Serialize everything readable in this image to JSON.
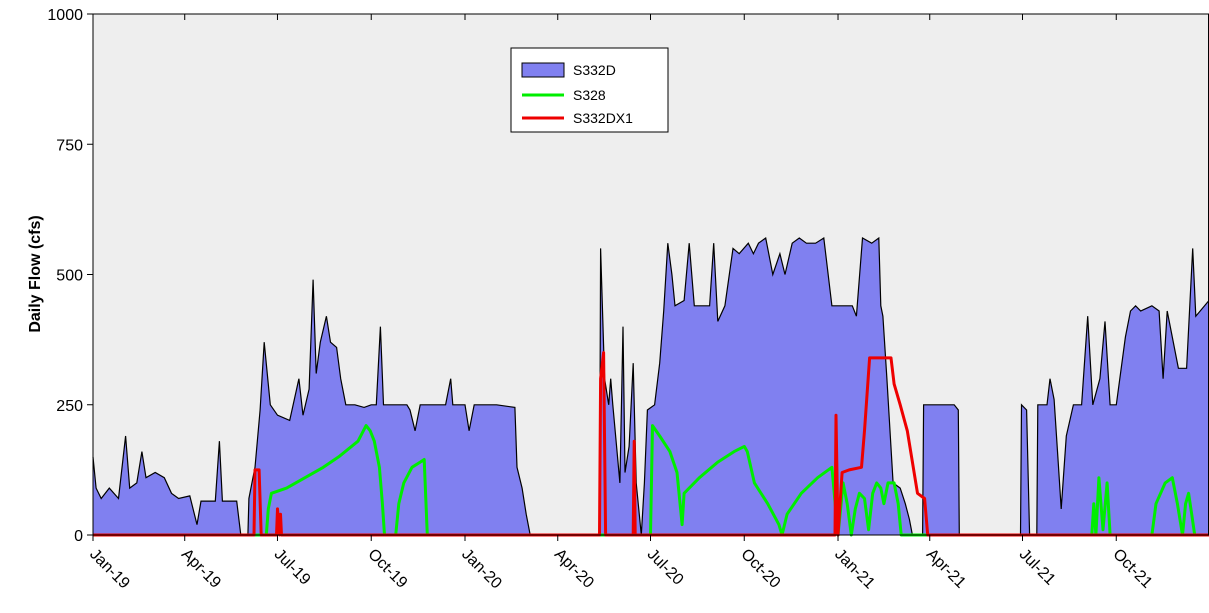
{
  "chart_data": {
    "type": "area",
    "title": "",
    "xlabel": "",
    "ylabel": "Daily Flow (cfs)",
    "ylim": [
      0,
      1000
    ],
    "yticks": [
      0,
      250,
      500,
      750,
      1000
    ],
    "xlim": [
      "2019-01-01",
      "2021-12-31"
    ],
    "xticks": [
      {
        "date": "2019-01-01",
        "label": "Jan-19"
      },
      {
        "date": "2019-04-01",
        "label": "Apr-19"
      },
      {
        "date": "2019-07-01",
        "label": "Jul-19"
      },
      {
        "date": "2019-10-01",
        "label": "Oct-19"
      },
      {
        "date": "2020-01-01",
        "label": "Jan-20"
      },
      {
        "date": "2020-04-01",
        "label": "Apr-20"
      },
      {
        "date": "2020-07-01",
        "label": "Jul-20"
      },
      {
        "date": "2020-10-01",
        "label": "Oct-20"
      },
      {
        "date": "2021-01-01",
        "label": "Jan-21"
      },
      {
        "date": "2021-04-01",
        "label": "Apr-21"
      },
      {
        "date": "2021-07-01",
        "label": "Jul-21"
      },
      {
        "date": "2021-10-01",
        "label": "Oct-21"
      }
    ],
    "grid": false,
    "legend_position": "top-center",
    "background": "#eeeeee",
    "series": [
      {
        "name": "S332D",
        "kind": "area",
        "fill": "#8080f0",
        "stroke": "#000000",
        "points": [
          [
            "2019-01-01",
            150
          ],
          [
            "2019-01-04",
            90
          ],
          [
            "2019-01-09",
            70
          ],
          [
            "2019-01-17",
            90
          ],
          [
            "2019-01-26",
            70
          ],
          [
            "2019-02-02",
            190
          ],
          [
            "2019-02-06",
            90
          ],
          [
            "2019-02-13",
            100
          ],
          [
            "2019-02-18",
            160
          ],
          [
            "2019-02-22",
            110
          ],
          [
            "2019-03-03",
            120
          ],
          [
            "2019-03-12",
            110
          ],
          [
            "2019-03-19",
            80
          ],
          [
            "2019-03-26",
            70
          ],
          [
            "2019-04-06",
            75
          ],
          [
            "2019-04-13",
            20
          ],
          [
            "2019-04-17",
            65
          ],
          [
            "2019-05-01",
            65
          ],
          [
            "2019-05-05",
            180
          ],
          [
            "2019-05-08",
            65
          ],
          [
            "2019-05-22",
            65
          ],
          [
            "2019-05-26",
            0
          ],
          [
            "2019-06-02",
            0
          ],
          [
            "2019-06-03",
            70
          ],
          [
            "2019-06-09",
            130
          ],
          [
            "2019-06-14",
            240
          ],
          [
            "2019-06-18",
            370
          ],
          [
            "2019-06-24",
            250
          ],
          [
            "2019-07-01",
            230
          ],
          [
            "2019-07-13",
            220
          ],
          [
            "2019-07-22",
            300
          ],
          [
            "2019-07-26",
            230
          ],
          [
            "2019-08-01",
            280
          ],
          [
            "2019-08-05",
            490
          ],
          [
            "2019-08-08",
            310
          ],
          [
            "2019-08-12",
            370
          ],
          [
            "2019-08-18",
            420
          ],
          [
            "2019-08-22",
            370
          ],
          [
            "2019-08-28",
            360
          ],
          [
            "2019-09-01",
            300
          ],
          [
            "2019-09-06",
            250
          ],
          [
            "2019-09-15",
            250
          ],
          [
            "2019-09-24",
            245
          ],
          [
            "2019-10-01",
            250
          ],
          [
            "2019-10-06",
            250
          ],
          [
            "2019-10-10",
            400
          ],
          [
            "2019-10-13",
            250
          ],
          [
            "2019-10-30",
            250
          ],
          [
            "2019-11-05",
            250
          ],
          [
            "2019-11-08",
            240
          ],
          [
            "2019-11-13",
            200
          ],
          [
            "2019-11-18",
            250
          ],
          [
            "2019-12-01",
            250
          ],
          [
            "2019-12-13",
            250
          ],
          [
            "2019-12-18",
            300
          ],
          [
            "2019-12-20",
            250
          ],
          [
            "2020-01-01",
            250
          ],
          [
            "2020-01-05",
            200
          ],
          [
            "2020-01-10",
            250
          ],
          [
            "2020-02-01",
            250
          ],
          [
            "2020-02-19",
            245
          ],
          [
            "2020-02-21",
            130
          ],
          [
            "2020-02-26",
            90
          ],
          [
            "2020-03-01",
            40
          ],
          [
            "2020-03-05",
            0
          ],
          [
            "2020-05-12",
            0
          ],
          [
            "2020-05-13",
            550
          ],
          [
            "2020-05-17",
            300
          ],
          [
            "2020-05-21",
            250
          ],
          [
            "2020-05-23",
            300
          ],
          [
            "2020-05-25",
            250
          ],
          [
            "2020-06-01",
            100
          ],
          [
            "2020-06-04",
            400
          ],
          [
            "2020-06-06",
            120
          ],
          [
            "2020-06-10",
            170
          ],
          [
            "2020-06-14",
            330
          ],
          [
            "2020-06-17",
            100
          ],
          [
            "2020-06-22",
            0
          ],
          [
            "2020-06-25",
            100
          ],
          [
            "2020-06-28",
            240
          ],
          [
            "2020-07-05",
            250
          ],
          [
            "2020-07-10",
            330
          ],
          [
            "2020-07-14",
            430
          ],
          [
            "2020-07-18",
            560
          ],
          [
            "2020-07-22",
            500
          ],
          [
            "2020-07-25",
            440
          ],
          [
            "2020-08-03",
            450
          ],
          [
            "2020-08-08",
            560
          ],
          [
            "2020-08-13",
            440
          ],
          [
            "2020-08-28",
            440
          ],
          [
            "2020-09-01",
            560
          ],
          [
            "2020-09-05",
            410
          ],
          [
            "2020-09-12",
            440
          ],
          [
            "2020-09-20",
            550
          ],
          [
            "2020-09-26",
            540
          ],
          [
            "2020-10-05",
            560
          ],
          [
            "2020-10-10",
            540
          ],
          [
            "2020-10-15",
            560
          ],
          [
            "2020-10-22",
            570
          ],
          [
            "2020-10-29",
            500
          ],
          [
            "2020-11-05",
            540
          ],
          [
            "2020-11-10",
            500
          ],
          [
            "2020-11-17",
            560
          ],
          [
            "2020-11-24",
            570
          ],
          [
            "2020-12-01",
            560
          ],
          [
            "2020-12-10",
            560
          ],
          [
            "2020-12-18",
            570
          ],
          [
            "2020-12-26",
            440
          ],
          [
            "2021-01-05",
            440
          ],
          [
            "2021-01-15",
            440
          ],
          [
            "2021-01-19",
            420
          ],
          [
            "2021-01-25",
            570
          ],
          [
            "2021-02-03",
            560
          ],
          [
            "2021-02-10",
            570
          ],
          [
            "2021-02-12",
            440
          ],
          [
            "2021-02-14",
            420
          ],
          [
            "2021-02-18",
            300
          ],
          [
            "2021-02-24",
            100
          ],
          [
            "2021-03-03",
            90
          ],
          [
            "2021-03-08",
            60
          ],
          [
            "2021-03-12",
            30
          ],
          [
            "2021-03-15",
            0
          ],
          [
            "2021-03-25",
            0
          ],
          [
            "2021-03-26",
            250
          ],
          [
            "2021-04-10",
            250
          ],
          [
            "2021-04-25",
            250
          ],
          [
            "2021-04-29",
            240
          ],
          [
            "2021-04-30",
            0
          ],
          [
            "2021-06-29",
            0
          ],
          [
            "2021-06-30",
            250
          ],
          [
            "2021-07-05",
            240
          ],
          [
            "2021-07-08",
            0
          ],
          [
            "2021-07-15",
            0
          ],
          [
            "2021-07-16",
            250
          ],
          [
            "2021-07-25",
            250
          ],
          [
            "2021-07-28",
            300
          ],
          [
            "2021-08-01",
            260
          ],
          [
            "2021-08-05",
            140
          ],
          [
            "2021-08-08",
            50
          ],
          [
            "2021-08-13",
            190
          ],
          [
            "2021-08-20",
            250
          ],
          [
            "2021-08-28",
            250
          ],
          [
            "2021-09-03",
            420
          ],
          [
            "2021-09-08",
            250
          ],
          [
            "2021-09-15",
            300
          ],
          [
            "2021-09-20",
            410
          ],
          [
            "2021-09-25",
            250
          ],
          [
            "2021-10-01",
            250
          ],
          [
            "2021-10-10",
            380
          ],
          [
            "2021-10-15",
            430
          ],
          [
            "2021-10-20",
            440
          ],
          [
            "2021-10-25",
            430
          ],
          [
            "2021-11-05",
            440
          ],
          [
            "2021-11-12",
            430
          ],
          [
            "2021-11-16",
            300
          ],
          [
            "2021-11-20",
            430
          ],
          [
            "2021-12-01",
            320
          ],
          [
            "2021-12-09",
            320
          ],
          [
            "2021-12-15",
            550
          ],
          [
            "2021-12-18",
            420
          ],
          [
            "2021-12-31",
            450
          ]
        ]
      },
      {
        "name": "S328",
        "kind": "line",
        "color": "#00ee00",
        "points": [
          [
            "2019-01-01",
            0
          ],
          [
            "2019-06-20",
            0
          ],
          [
            "2019-06-22",
            50
          ],
          [
            "2019-06-25",
            80
          ],
          [
            "2019-07-10",
            90
          ],
          [
            "2019-07-28",
            110
          ],
          [
            "2019-08-15",
            130
          ],
          [
            "2019-08-30",
            150
          ],
          [
            "2019-09-18",
            180
          ],
          [
            "2019-09-26",
            210
          ],
          [
            "2019-09-30",
            200
          ],
          [
            "2019-10-04",
            180
          ],
          [
            "2019-10-09",
            130
          ],
          [
            "2019-10-12",
            60
          ],
          [
            "2019-10-14",
            0
          ],
          [
            "2019-10-25",
            0
          ],
          [
            "2019-10-28",
            60
          ],
          [
            "2019-11-02",
            100
          ],
          [
            "2019-11-10",
            130
          ],
          [
            "2019-11-18",
            140
          ],
          [
            "2019-11-22",
            145
          ],
          [
            "2019-11-25",
            0
          ],
          [
            "2020-07-01",
            0
          ],
          [
            "2020-07-03",
            210
          ],
          [
            "2020-07-10",
            190
          ],
          [
            "2020-07-20",
            160
          ],
          [
            "2020-07-27",
            120
          ],
          [
            "2020-08-01",
            20
          ],
          [
            "2020-08-03",
            80
          ],
          [
            "2020-08-18",
            110
          ],
          [
            "2020-09-05",
            140
          ],
          [
            "2020-09-21",
            160
          ],
          [
            "2020-10-01",
            170
          ],
          [
            "2020-10-04",
            160
          ],
          [
            "2020-10-11",
            100
          ],
          [
            "2020-10-24",
            60
          ],
          [
            "2020-11-04",
            20
          ],
          [
            "2020-11-07",
            0
          ],
          [
            "2020-11-12",
            40
          ],
          [
            "2020-11-26",
            80
          ],
          [
            "2020-12-12",
            110
          ],
          [
            "2020-12-26",
            130
          ],
          [
            "2021-01-01",
            0
          ],
          [
            "2021-01-03",
            40
          ],
          [
            "2021-01-06",
            100
          ],
          [
            "2021-01-10",
            60
          ],
          [
            "2021-01-14",
            0
          ],
          [
            "2021-01-18",
            50
          ],
          [
            "2021-01-22",
            80
          ],
          [
            "2021-01-27",
            70
          ],
          [
            "2021-01-31",
            10
          ],
          [
            "2021-02-04",
            80
          ],
          [
            "2021-02-08",
            100
          ],
          [
            "2021-02-12",
            90
          ],
          [
            "2021-02-15",
            60
          ],
          [
            "2021-02-19",
            100
          ],
          [
            "2021-02-25",
            100
          ],
          [
            "2021-03-01",
            60
          ],
          [
            "2021-03-04",
            0
          ],
          [
            "2021-09-07",
            0
          ],
          [
            "2021-09-09",
            60
          ],
          [
            "2021-09-11",
            0
          ],
          [
            "2021-09-14",
            110
          ],
          [
            "2021-09-18",
            10
          ],
          [
            "2021-09-22",
            100
          ],
          [
            "2021-09-25",
            0
          ],
          [
            "2021-11-05",
            0
          ],
          [
            "2021-11-09",
            60
          ],
          [
            "2021-11-18",
            100
          ],
          [
            "2021-11-25",
            110
          ],
          [
            "2021-11-30",
            60
          ],
          [
            "2021-12-05",
            0
          ],
          [
            "2021-12-08",
            60
          ],
          [
            "2021-12-11",
            80
          ],
          [
            "2021-12-14",
            40
          ],
          [
            "2021-12-17",
            0
          ],
          [
            "2021-12-31",
            0
          ]
        ]
      },
      {
        "name": "S332DX1",
        "kind": "line",
        "color": "#ee0000",
        "points": [
          [
            "2019-01-01",
            0
          ],
          [
            "2019-06-08",
            0
          ],
          [
            "2019-06-09",
            125
          ],
          [
            "2019-06-13",
            125
          ],
          [
            "2019-06-15",
            0
          ],
          [
            "2019-06-30",
            0
          ],
          [
            "2019-07-01",
            50
          ],
          [
            "2019-07-03",
            0
          ],
          [
            "2019-07-04",
            40
          ],
          [
            "2019-07-05",
            0
          ],
          [
            "2020-05-12",
            0
          ],
          [
            "2020-05-13",
            300
          ],
          [
            "2020-05-16",
            350
          ],
          [
            "2020-05-18",
            0
          ],
          [
            "2020-06-14",
            0
          ],
          [
            "2020-06-15",
            180
          ],
          [
            "2020-06-16",
            0
          ],
          [
            "2020-12-29",
            0
          ],
          [
            "2020-12-30",
            230
          ],
          [
            "2021-01-01",
            0
          ],
          [
            "2021-01-05",
            120
          ],
          [
            "2021-01-12",
            125
          ],
          [
            "2021-01-24",
            130
          ],
          [
            "2021-01-27",
            200
          ],
          [
            "2021-02-01",
            340
          ],
          [
            "2021-02-10",
            340
          ],
          [
            "2021-02-22",
            340
          ],
          [
            "2021-02-25",
            290
          ],
          [
            "2021-03-03",
            250
          ],
          [
            "2021-03-10",
            200
          ],
          [
            "2021-03-20",
            80
          ],
          [
            "2021-03-27",
            70
          ],
          [
            "2021-03-30",
            0
          ],
          [
            "2021-12-31",
            0
          ]
        ]
      }
    ]
  }
}
